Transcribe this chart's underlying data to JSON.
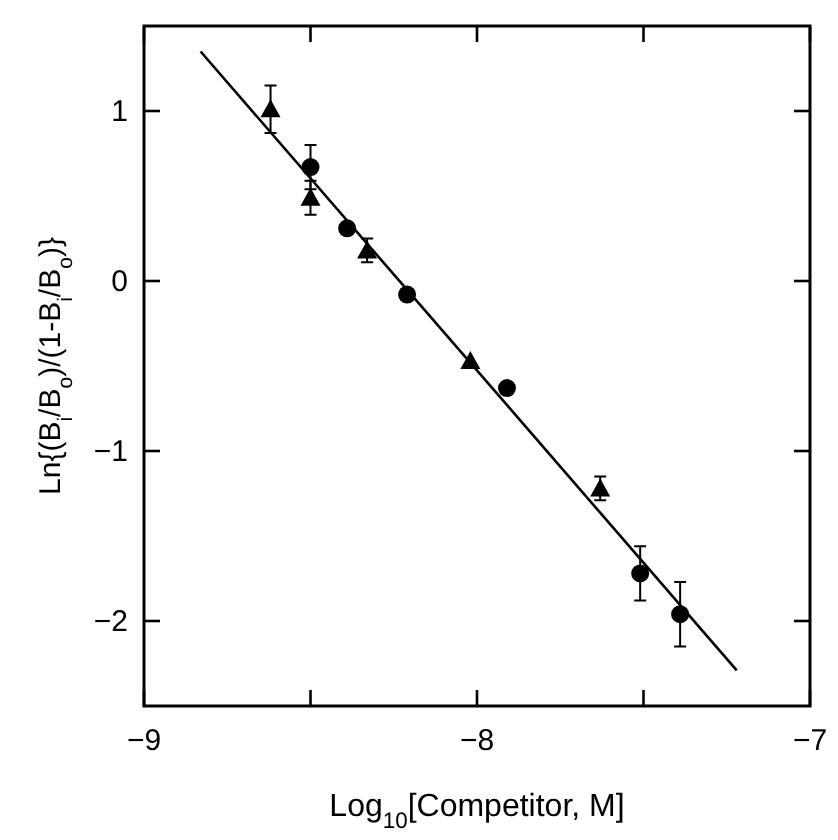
{
  "chart_data": {
    "type": "scatter",
    "xlabel": "Log$_{10}$[Competitor, M]",
    "ylabel": "Ln{(B$_{i}$/B$_{o}$)/(1-B$_{i}$/B$_{o}$)}",
    "xlim": [
      -9,
      -7
    ],
    "ylim": [
      -2.5,
      1.5
    ],
    "xticks": [
      -9,
      {
        "value": -8.5,
        "label": null
      },
      -8,
      {
        "value": -7.5,
        "label": null
      },
      -7
    ],
    "yticks": [
      -2,
      -1,
      0,
      1
    ],
    "grid": false,
    "series": [
      {
        "marker": "triangle",
        "color": "#000000",
        "x": [
          -8.62,
          -8.5,
          -8.33,
          -8.02,
          -7.63
        ],
        "values": [
          1.01,
          0.49,
          0.18,
          -0.47,
          -1.22
        ],
        "errors": [
          0.14,
          0.1,
          0.07,
          null,
          0.07
        ]
      },
      {
        "marker": "circle",
        "color": "#000000",
        "x": [
          -8.5,
          -8.39,
          -8.21,
          -7.91,
          -7.51,
          -7.39
        ],
        "values": [
          0.67,
          0.31,
          -0.08,
          -0.63,
          -1.72,
          -1.96
        ],
        "errors": [
          0.13,
          null,
          null,
          null,
          0.16,
          0.19
        ]
      },
      {
        "type": "line",
        "marker": "none",
        "line_style": "solid",
        "color": "#000000",
        "x": [
          -8.83,
          -7.22
        ],
        "values": [
          1.35,
          -2.29
        ]
      }
    ]
  }
}
